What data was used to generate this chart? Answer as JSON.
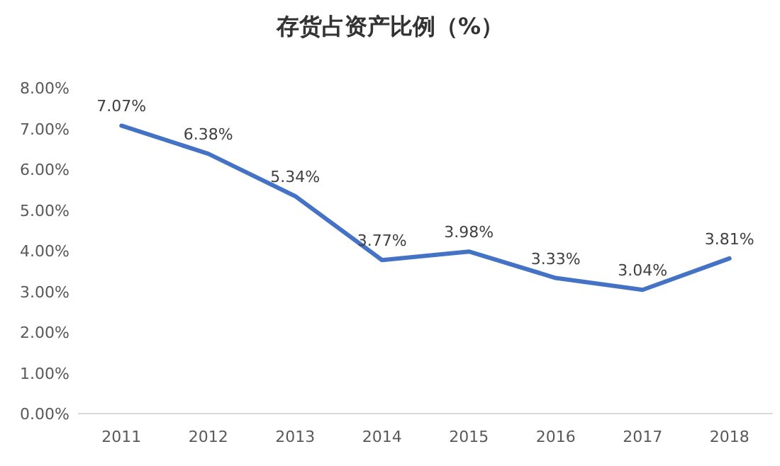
{
  "chart_data": {
    "type": "line",
    "title": "存货占资产比例（%）",
    "categories": [
      "2011",
      "2012",
      "2013",
      "2014",
      "2015",
      "2016",
      "2017",
      "2018"
    ],
    "values": [
      7.07,
      6.38,
      5.34,
      3.77,
      3.98,
      3.33,
      3.04,
      3.81
    ],
    "value_labels": [
      "7.07%",
      "6.38%",
      "5.34%",
      "3.77%",
      "3.98%",
      "3.33%",
      "3.04%",
      "3.81%"
    ],
    "color": "#4472c4",
    "line_style": "solid",
    "ylim": [
      0,
      8
    ],
    "yticks": [
      {
        "value": 0,
        "label": "0.00%"
      },
      {
        "value": 1,
        "label": "1.00%"
      },
      {
        "value": 2,
        "label": "2.00%"
      },
      {
        "value": 3,
        "label": "3.00%"
      },
      {
        "value": 4,
        "label": "4.00%"
      },
      {
        "value": 5,
        "label": "5.00%"
      },
      {
        "value": 6,
        "label": "6.00%"
      },
      {
        "value": 7,
        "label": "7.00%"
      },
      {
        "value": 8,
        "label": "8.00%"
      }
    ]
  }
}
